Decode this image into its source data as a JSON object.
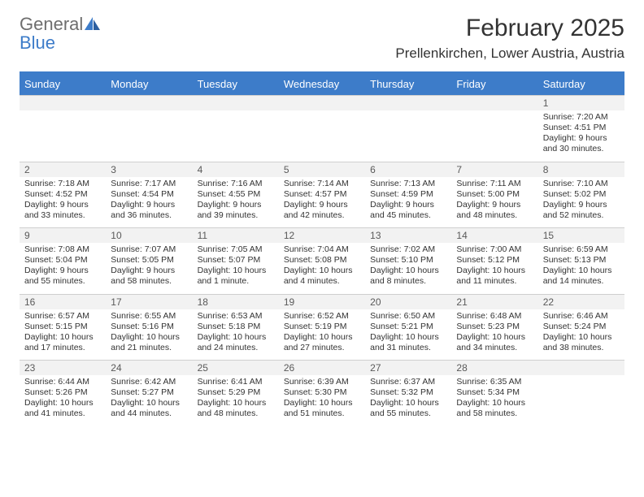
{
  "brand": {
    "word1": "General",
    "word2": "Blue"
  },
  "header": {
    "month_title": "February 2025",
    "location": "Prellenkirchen, Lower Austria, Austria"
  },
  "colors": {
    "accent": "#3d7cc9",
    "header_text": "#ffffff",
    "strip_bg": "#f2f2f2",
    "daynum_text": "#595959",
    "body_text": "#333333",
    "logo_gray": "#6e6e6e"
  },
  "days_of_week": [
    "Sunday",
    "Monday",
    "Tuesday",
    "Wednesday",
    "Thursday",
    "Friday",
    "Saturday"
  ],
  "weeks": [
    [
      null,
      null,
      null,
      null,
      null,
      null,
      {
        "n": "1",
        "sr": "Sunrise: 7:20 AM",
        "ss": "Sunset: 4:51 PM",
        "dl1": "Daylight: 9 hours",
        "dl2": "and 30 minutes."
      }
    ],
    [
      {
        "n": "2",
        "sr": "Sunrise: 7:18 AM",
        "ss": "Sunset: 4:52 PM",
        "dl1": "Daylight: 9 hours",
        "dl2": "and 33 minutes."
      },
      {
        "n": "3",
        "sr": "Sunrise: 7:17 AM",
        "ss": "Sunset: 4:54 PM",
        "dl1": "Daylight: 9 hours",
        "dl2": "and 36 minutes."
      },
      {
        "n": "4",
        "sr": "Sunrise: 7:16 AM",
        "ss": "Sunset: 4:55 PM",
        "dl1": "Daylight: 9 hours",
        "dl2": "and 39 minutes."
      },
      {
        "n": "5",
        "sr": "Sunrise: 7:14 AM",
        "ss": "Sunset: 4:57 PM",
        "dl1": "Daylight: 9 hours",
        "dl2": "and 42 minutes."
      },
      {
        "n": "6",
        "sr": "Sunrise: 7:13 AM",
        "ss": "Sunset: 4:59 PM",
        "dl1": "Daylight: 9 hours",
        "dl2": "and 45 minutes."
      },
      {
        "n": "7",
        "sr": "Sunrise: 7:11 AM",
        "ss": "Sunset: 5:00 PM",
        "dl1": "Daylight: 9 hours",
        "dl2": "and 48 minutes."
      },
      {
        "n": "8",
        "sr": "Sunrise: 7:10 AM",
        "ss": "Sunset: 5:02 PM",
        "dl1": "Daylight: 9 hours",
        "dl2": "and 52 minutes."
      }
    ],
    [
      {
        "n": "9",
        "sr": "Sunrise: 7:08 AM",
        "ss": "Sunset: 5:04 PM",
        "dl1": "Daylight: 9 hours",
        "dl2": "and 55 minutes."
      },
      {
        "n": "10",
        "sr": "Sunrise: 7:07 AM",
        "ss": "Sunset: 5:05 PM",
        "dl1": "Daylight: 9 hours",
        "dl2": "and 58 minutes."
      },
      {
        "n": "11",
        "sr": "Sunrise: 7:05 AM",
        "ss": "Sunset: 5:07 PM",
        "dl1": "Daylight: 10 hours",
        "dl2": "and 1 minute."
      },
      {
        "n": "12",
        "sr": "Sunrise: 7:04 AM",
        "ss": "Sunset: 5:08 PM",
        "dl1": "Daylight: 10 hours",
        "dl2": "and 4 minutes."
      },
      {
        "n": "13",
        "sr": "Sunrise: 7:02 AM",
        "ss": "Sunset: 5:10 PM",
        "dl1": "Daylight: 10 hours",
        "dl2": "and 8 minutes."
      },
      {
        "n": "14",
        "sr": "Sunrise: 7:00 AM",
        "ss": "Sunset: 5:12 PM",
        "dl1": "Daylight: 10 hours",
        "dl2": "and 11 minutes."
      },
      {
        "n": "15",
        "sr": "Sunrise: 6:59 AM",
        "ss": "Sunset: 5:13 PM",
        "dl1": "Daylight: 10 hours",
        "dl2": "and 14 minutes."
      }
    ],
    [
      {
        "n": "16",
        "sr": "Sunrise: 6:57 AM",
        "ss": "Sunset: 5:15 PM",
        "dl1": "Daylight: 10 hours",
        "dl2": "and 17 minutes."
      },
      {
        "n": "17",
        "sr": "Sunrise: 6:55 AM",
        "ss": "Sunset: 5:16 PM",
        "dl1": "Daylight: 10 hours",
        "dl2": "and 21 minutes."
      },
      {
        "n": "18",
        "sr": "Sunrise: 6:53 AM",
        "ss": "Sunset: 5:18 PM",
        "dl1": "Daylight: 10 hours",
        "dl2": "and 24 minutes."
      },
      {
        "n": "19",
        "sr": "Sunrise: 6:52 AM",
        "ss": "Sunset: 5:19 PM",
        "dl1": "Daylight: 10 hours",
        "dl2": "and 27 minutes."
      },
      {
        "n": "20",
        "sr": "Sunrise: 6:50 AM",
        "ss": "Sunset: 5:21 PM",
        "dl1": "Daylight: 10 hours",
        "dl2": "and 31 minutes."
      },
      {
        "n": "21",
        "sr": "Sunrise: 6:48 AM",
        "ss": "Sunset: 5:23 PM",
        "dl1": "Daylight: 10 hours",
        "dl2": "and 34 minutes."
      },
      {
        "n": "22",
        "sr": "Sunrise: 6:46 AM",
        "ss": "Sunset: 5:24 PM",
        "dl1": "Daylight: 10 hours",
        "dl2": "and 38 minutes."
      }
    ],
    [
      {
        "n": "23",
        "sr": "Sunrise: 6:44 AM",
        "ss": "Sunset: 5:26 PM",
        "dl1": "Daylight: 10 hours",
        "dl2": "and 41 minutes."
      },
      {
        "n": "24",
        "sr": "Sunrise: 6:42 AM",
        "ss": "Sunset: 5:27 PM",
        "dl1": "Daylight: 10 hours",
        "dl2": "and 44 minutes."
      },
      {
        "n": "25",
        "sr": "Sunrise: 6:41 AM",
        "ss": "Sunset: 5:29 PM",
        "dl1": "Daylight: 10 hours",
        "dl2": "and 48 minutes."
      },
      {
        "n": "26",
        "sr": "Sunrise: 6:39 AM",
        "ss": "Sunset: 5:30 PM",
        "dl1": "Daylight: 10 hours",
        "dl2": "and 51 minutes."
      },
      {
        "n": "27",
        "sr": "Sunrise: 6:37 AM",
        "ss": "Sunset: 5:32 PM",
        "dl1": "Daylight: 10 hours",
        "dl2": "and 55 minutes."
      },
      {
        "n": "28",
        "sr": "Sunrise: 6:35 AM",
        "ss": "Sunset: 5:34 PM",
        "dl1": "Daylight: 10 hours",
        "dl2": "and 58 minutes."
      },
      null
    ]
  ]
}
